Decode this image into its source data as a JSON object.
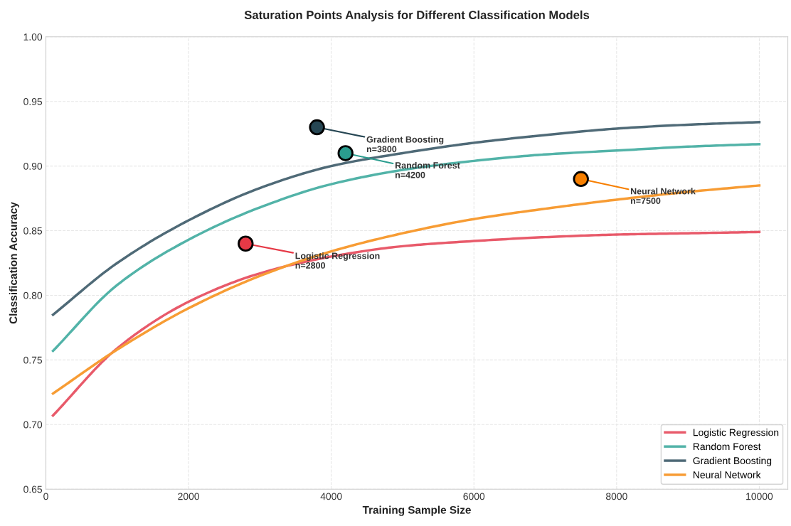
{
  "chart_data": {
    "type": "line",
    "title": "Saturation Points Analysis for Different Classification Models",
    "xlabel": "Training Sample Size",
    "ylabel": "Classification Accuracy",
    "x": [
      100,
      1000,
      2000,
      3000,
      4000,
      5000,
      6000,
      7000,
      8000,
      9000,
      10000
    ],
    "series": [
      {
        "name": "Logistic Regression",
        "color": "#e85a6a",
        "values": [
          0.707,
          0.759,
          0.795,
          0.817,
          0.83,
          0.838,
          0.842,
          0.845,
          0.847,
          0.848,
          0.849
        ]
      },
      {
        "name": "Random Forest",
        "color": "#52b3a8",
        "values": [
          0.757,
          0.808,
          0.843,
          0.868,
          0.886,
          0.897,
          0.904,
          0.909,
          0.912,
          0.915,
          0.917
        ]
      },
      {
        "name": "Gradient Boosting",
        "color": "#4f6a77",
        "values": [
          0.785,
          0.825,
          0.858,
          0.883,
          0.9,
          0.91,
          0.918,
          0.924,
          0.929,
          0.932,
          0.934
        ]
      },
      {
        "name": "Neural Network",
        "color": "#f79c34",
        "values": [
          0.724,
          0.758,
          0.79,
          0.815,
          0.834,
          0.848,
          0.859,
          0.867,
          0.874,
          0.88,
          0.885
        ]
      },
      {
        "type": "scatter",
        "x": [
          2800
        ],
        "values": [
          0.84
        ],
        "color": "#e63946",
        "marker": "circle"
      },
      {
        "type": "scatter",
        "x": [
          3800
        ],
        "values": [
          0.93
        ],
        "color": "#264653",
        "marker": "circle"
      },
      {
        "type": "scatter",
        "x": [
          4200
        ],
        "values": [
          0.91
        ],
        "color": "#2a9d8f",
        "marker": "circle"
      },
      {
        "type": "scatter",
        "x": [
          7500
        ],
        "values": [
          0.89
        ],
        "color": "#f77f00",
        "marker": "circle"
      }
    ],
    "annotations": [
      {
        "text": "Logistic Regression\nn=2800",
        "x": 2800,
        "y": 0.84
      },
      {
        "text": "Gradient Boosting\nn=3800",
        "x": 3800,
        "y": 0.93
      },
      {
        "text": "Random Forest\nn=4200",
        "x": 4200,
        "y": 0.91
      },
      {
        "text": "Neural Network\nn=7500",
        "x": 7500,
        "y": 0.89
      }
    ],
    "xlim": [
      0,
      10400
    ],
    "ylim": [
      0.65,
      1.0
    ],
    "xticks": [
      0,
      2000,
      4000,
      6000,
      8000,
      10000
    ],
    "yticks": [
      {
        "value": 0.65,
        "label": "0.65"
      },
      {
        "value": 0.7,
        "label": "0.70"
      },
      {
        "value": 0.75,
        "label": "0.75"
      },
      {
        "value": 0.8,
        "label": "0.80"
      },
      {
        "value": 0.85,
        "label": "0.85"
      },
      {
        "value": 0.9,
        "label": "0.90"
      },
      {
        "value": 0.95,
        "label": "0.95"
      },
      {
        "value": 1.0,
        "label": "1.00"
      }
    ],
    "grid": true,
    "legend": "bottom right",
    "marker": "none",
    "line_style": "solid"
  }
}
